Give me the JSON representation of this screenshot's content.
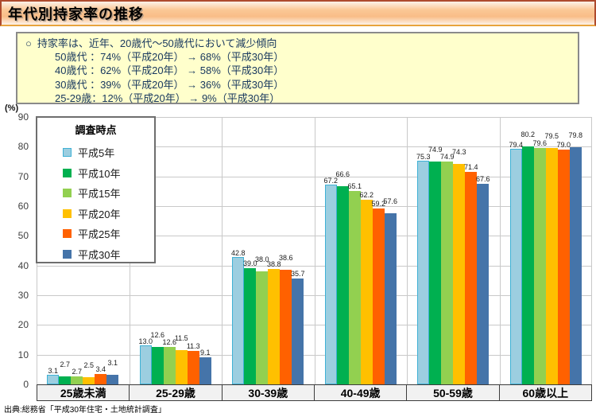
{
  "header": {
    "title": "年代別持家率の推移"
  },
  "summary_box": {
    "bullet": "○",
    "lead": "持家率は、近年、20歳代～50歳代において減少傾向",
    "lines": [
      "50歳代 ：74%（平成20年） →  68%（平成30年）",
      "40歳代 ：62%（平成20年） →  58%（平成30年）",
      "30歳代 ：39%（平成20年） →  36%（平成30年）",
      "25-29歳：12%（平成20年） →   9%（平成30年）"
    ]
  },
  "chart_data": {
    "type": "bar",
    "title": "",
    "unit_label": "(%)",
    "legend_title": "調査時点",
    "legend_position": "top-left-inside",
    "grid": true,
    "value_labels": true,
    "ylim": [
      0,
      90
    ],
    "yticks": [
      0,
      10,
      20,
      30,
      40,
      50,
      60,
      70,
      80,
      90
    ],
    "categories": [
      "25歳未満",
      "25-29歳",
      "30-39歳",
      "40-49歳",
      "50-59歳",
      "60歳以上"
    ],
    "series": [
      {
        "name": "平成5年",
        "color": "#9CCEE0",
        "border": "#3FB1D5",
        "values": [
          3.1,
          13.0,
          42.8,
          67.2,
          75.3,
          79.4
        ]
      },
      {
        "name": "平成10年",
        "color": "#00B050",
        "values": [
          2.7,
          12.6,
          39.0,
          66.6,
          74.9,
          80.2
        ]
      },
      {
        "name": "平成15年",
        "color": "#92D050",
        "values": [
          2.7,
          12.6,
          38.0,
          65.1,
          74.9,
          79.6
        ]
      },
      {
        "name": "平成20年",
        "color": "#FFC000",
        "values": [
          2.5,
          11.5,
          38.8,
          62.2,
          74.3,
          79.5
        ]
      },
      {
        "name": "平成25年",
        "color": "#FF6100",
        "values": [
          3.4,
          11.3,
          38.6,
          59.2,
          71.4,
          79.0
        ]
      },
      {
        "name": "平成30年",
        "color": "#4574A9",
        "values": [
          3.1,
          9.1,
          35.7,
          57.6,
          67.6,
          79.8
        ]
      }
    ]
  },
  "source": {
    "text": "出典:総務省「平成30年住宅・土地統計調査」"
  },
  "colors": {
    "title_bar": "#FAC090",
    "summary_bg": "#FFFFCC",
    "summary_text": "#17375E"
  }
}
